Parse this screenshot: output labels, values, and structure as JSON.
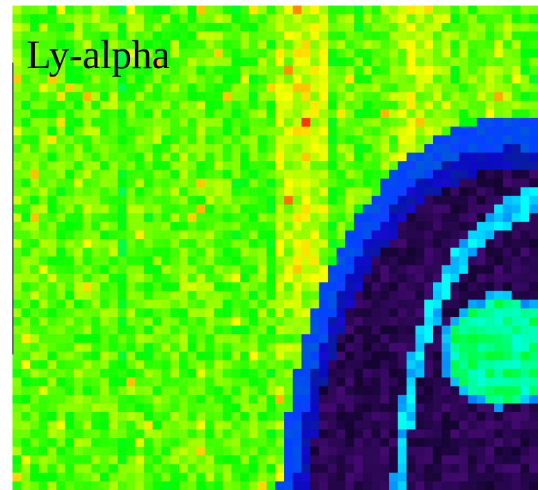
{
  "label": "Ly-alpha"
}
